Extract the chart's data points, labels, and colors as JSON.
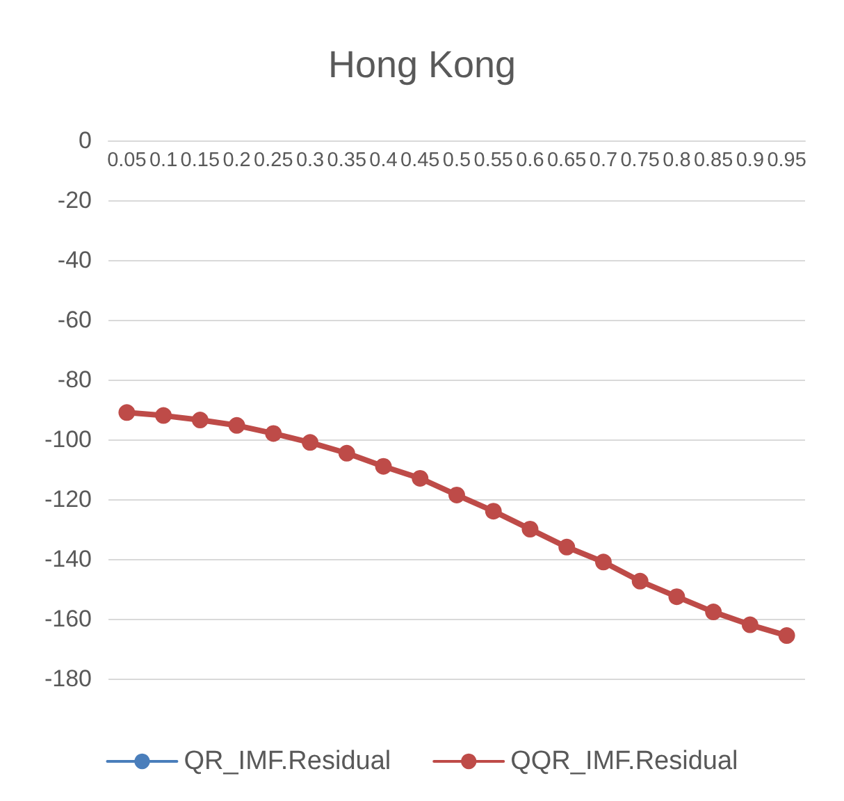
{
  "chart_data": {
    "type": "line",
    "title": "Hong Kong",
    "categories": [
      "0.05",
      "0.1",
      "0.15",
      "0.2",
      "0.25",
      "0.3",
      "0.35",
      "0.4",
      "0.45",
      "0.5",
      "0.55",
      "0.6",
      "0.65",
      "0.7",
      "0.75",
      "0.8",
      "0.85",
      "0.9",
      "0.95"
    ],
    "series": [
      {
        "name": "QR_IMF.Residual",
        "color": "#4a7ebb",
        "values": [
          null,
          null,
          null,
          null,
          null,
          null,
          null,
          null,
          null,
          null,
          null,
          null,
          null,
          null,
          null,
          null,
          null,
          null,
          null
        ]
      },
      {
        "name": "QQR_IMF.Residual",
        "color": "#be4b48",
        "values": [
          -91,
          -92,
          -93.5,
          -95.3,
          -98,
          -101,
          -104.6,
          -109,
          -113,
          -118.6,
          -124,
          -130,
          -136,
          -141,
          -147.4,
          -152.6,
          -157.7,
          -162,
          -165.6
        ]
      }
    ],
    "ylim": [
      -180,
      0
    ],
    "yticks": [
      0,
      -20,
      -40,
      -60,
      -80,
      -100,
      -120,
      -140,
      -160,
      -180
    ],
    "grid": "y",
    "legend": "bottom",
    "marker": "circle",
    "line_style": "solid"
  }
}
